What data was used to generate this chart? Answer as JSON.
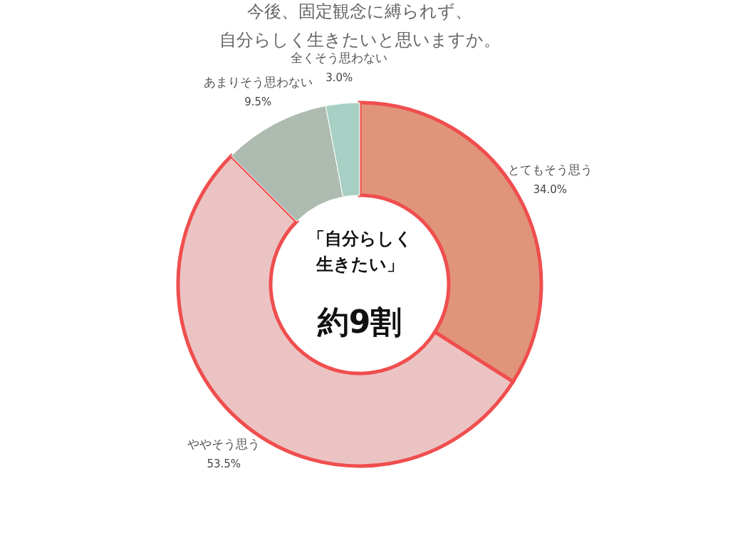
{
  "chart_data": {
    "type": "donut",
    "title": [
      "今後、固定観念に縛られず、",
      "自分らしく生きたいと思いますか。"
    ],
    "categories": [
      "とてもそう思う",
      "ややそう思う",
      "あまりそう思わない",
      "全くそう思わない"
    ],
    "values": [
      34.0,
      53.5,
      9.5,
      3.0
    ],
    "colors": [
      "#e0957b",
      "#ecc3c3",
      "#adbbb0",
      "#a8cfc4"
    ],
    "value_labels": [
      "34.0%",
      "53.5%",
      "9.5%",
      "3.0%"
    ],
    "annotations": [
      "「自分らしく",
      "生きたい」",
      "約9割"
    ],
    "legend": false
  }
}
